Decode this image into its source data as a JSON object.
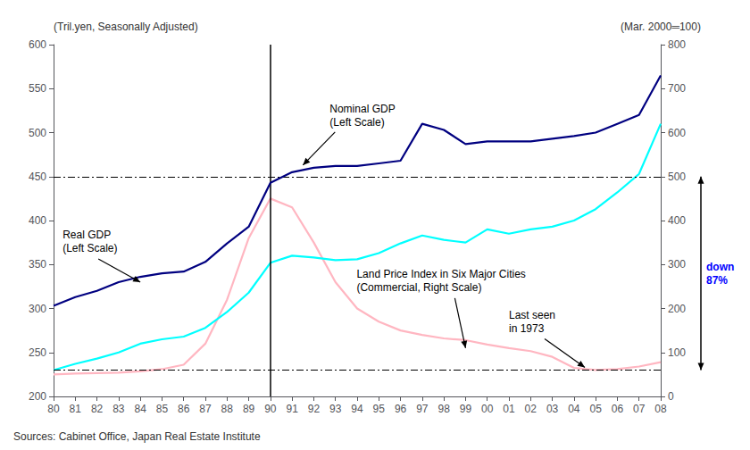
{
  "chart_data": {
    "type": "line",
    "x": [
      80,
      81,
      82,
      83,
      84,
      85,
      86,
      87,
      88,
      89,
      90,
      91,
      92,
      93,
      94,
      95,
      96,
      97,
      98,
      99,
      100,
      101,
      102,
      103,
      104,
      105,
      106,
      107,
      108
    ],
    "xlim": [
      80,
      108
    ],
    "xticks": [
      80,
      81,
      82,
      83,
      84,
      85,
      86,
      87,
      88,
      89,
      90,
      91,
      92,
      93,
      94,
      95,
      96,
      97,
      98,
      99,
      {
        "value": 100,
        "label": "00"
      },
      {
        "value": 101,
        "label": "01"
      },
      {
        "value": 102,
        "label": "02"
      },
      {
        "value": 103,
        "label": "03"
      },
      {
        "value": 104,
        "label": "04"
      },
      {
        "value": 105,
        "label": "05"
      },
      {
        "value": 106,
        "label": "06"
      },
      {
        "value": 107,
        "label": "07"
      },
      {
        "value": 108,
        "label": "08"
      }
    ],
    "ylim": [
      200,
      600
    ],
    "yticks": [
      200,
      250,
      300,
      350,
      400,
      450,
      500,
      550,
      600
    ],
    "y2lim": [
      0,
      800
    ],
    "y2ticks": [
      0,
      100,
      200,
      300,
      400,
      500,
      600,
      700,
      800
    ],
    "y_label": "(Tril.yen, Seasonally Adjusted)",
    "y2_label": "(Mar. 2000═100)",
    "source": "Sources: Cabinet Office, Japan Real Estate Institute",
    "grid": false,
    "series": [
      {
        "color": "#000080",
        "values": [
          303,
          313,
          320,
          330,
          336,
          340,
          342,
          353,
          374,
          393,
          443,
          455,
          460,
          462,
          462,
          465,
          468,
          510,
          503,
          487,
          490,
          490,
          490,
          493,
          496,
          500,
          510,
          520,
          565
        ]
      },
      {
        "color": "#00FFFF",
        "values": [
          230,
          237,
          243,
          250,
          260,
          265,
          268,
          278,
          296,
          318,
          352,
          360,
          358,
          355,
          356,
          363,
          374,
          383,
          378,
          375,
          390,
          385,
          390,
          393,
          400,
          413,
          432,
          453,
          510
        ]
      },
      {
        "color": "#FFB6C1",
        "axis": "y2",
        "values": [
          50,
          52,
          53,
          54,
          57,
          62,
          72,
          120,
          220,
          360,
          450,
          430,
          350,
          260,
          200,
          170,
          150,
          140,
          132,
          128,
          118,
          110,
          103,
          90,
          65,
          60,
          62,
          68,
          78
        ]
      }
    ],
    "reference_lines": {
      "y": [
        450,
        230
      ],
      "x": [
        90
      ]
    },
    "annotations": [
      {
        "text": "Real GDP\n(Left Scale)",
        "x": 84,
        "y": 330
      },
      {
        "text": "Nominal GDP\n(Left Scale)",
        "x": 91.5,
        "y": 463
      },
      {
        "text": "Land Price Index in Six Major Cities\n(Commercial, Right Scale)",
        "x": 99,
        "y": 255
      },
      {
        "text": "Last seen\nin 1973",
        "x": 104.5,
        "y": 233
      },
      {
        "text": "down\n87%",
        "color": "blue"
      }
    ]
  }
}
